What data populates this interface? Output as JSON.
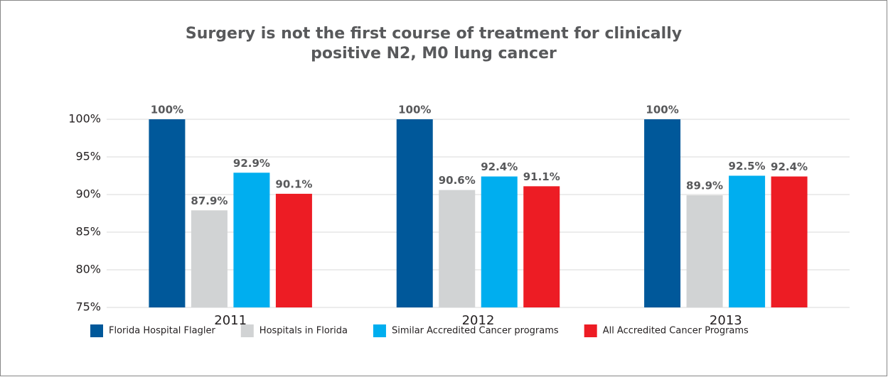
{
  "chart_data": {
    "type": "bar",
    "title": [
      "Surgery is not the first course of treatment for clinically",
      "positive N2, M0 lung cancer"
    ],
    "categories": [
      "2011",
      "2012",
      "2013"
    ],
    "series": [
      {
        "name": "Florida Hospital Flagler",
        "color": "#00589a",
        "values": [
          100,
          100,
          100
        ],
        "value_labels": [
          "100%",
          "100%",
          "100%"
        ]
      },
      {
        "name": "Hospitals in Florida",
        "color": "#d1d3d4",
        "values": [
          87.9,
          90.6,
          89.9
        ],
        "value_labels": [
          "87.9%",
          "90.6%",
          "89.9%"
        ]
      },
      {
        "name": "Similar Accredited Cancer programs",
        "color": "#00aeef",
        "values": [
          92.9,
          92.4,
          92.5
        ],
        "value_labels": [
          "92.9%",
          "92.4%",
          "92.5%"
        ]
      },
      {
        "name": "All Accredited Cancer Programs",
        "color": "#ed1c24",
        "values": [
          90.1,
          91.1,
          92.4
        ],
        "value_labels": [
          "90.1%",
          "91.1%",
          "92.4%"
        ]
      }
    ],
    "ylim": [
      75,
      100
    ],
    "yticks": [
      {
        "value": 75,
        "label": "75%"
      },
      {
        "value": 80,
        "label": "80%"
      },
      {
        "value": 85,
        "label": "85%"
      },
      {
        "value": 90,
        "label": "90%"
      },
      {
        "value": 95,
        "label": "95%"
      },
      {
        "value": 100,
        "label": "100%"
      }
    ],
    "grid": true,
    "legend": "bottom"
  }
}
